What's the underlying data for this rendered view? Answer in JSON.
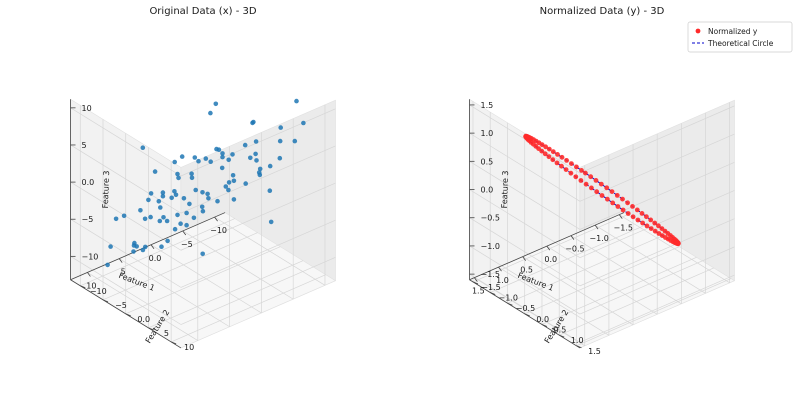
{
  "chart_data": [
    {
      "type": "scatter",
      "title": "Original Data (x) - 3D",
      "xlabel": "Feature 1",
      "ylabel": "Feature 2",
      "zlabel": "Feature 3",
      "xlim": [
        -13,
        14
      ],
      "ylim": [
        -13,
        13
      ],
      "zlim": [
        -15,
        13
      ],
      "xticks": [
        -10,
        -5,
        0,
        5,
        10
      ],
      "yticks": [
        -10,
        -5,
        0,
        5,
        10
      ],
      "zticks": [
        -10,
        -5,
        0,
        5,
        10
      ],
      "grid": true,
      "color": "#1f77b4",
      "points": [
        [
          -11,
          6,
          6
        ],
        [
          -9.5,
          3,
          3
        ],
        [
          -8,
          5,
          2
        ],
        [
          -7,
          2,
          -1
        ],
        [
          -9,
          -4,
          0
        ],
        [
          -6,
          8,
          8
        ],
        [
          -5,
          4,
          5
        ],
        [
          -4,
          -2,
          1
        ],
        [
          -3,
          6,
          9
        ],
        [
          -2,
          3,
          4
        ],
        [
          -2,
          -6,
          -2
        ],
        [
          -1,
          9,
          11
        ],
        [
          0,
          1,
          3
        ],
        [
          0.5,
          -3,
          -4
        ],
        [
          1,
          5,
          6
        ],
        [
          1.5,
          -8,
          -6
        ],
        [
          2,
          2,
          0
        ],
        [
          2.5,
          -5,
          -9
        ],
        [
          3,
          7,
          8
        ],
        [
          3.5,
          0,
          -1
        ],
        [
          4,
          -3,
          -5
        ],
        [
          4.5,
          4,
          2
        ],
        [
          5,
          -9,
          -11
        ],
        [
          5.5,
          6,
          7
        ],
        [
          6,
          -1,
          -3
        ],
        [
          6.5,
          3,
          4
        ],
        [
          7,
          -6,
          -8
        ],
        [
          7.5,
          8,
          9
        ],
        [
          8,
          1,
          -2
        ],
        [
          8.5,
          -4,
          -7
        ],
        [
          9,
          5,
          3
        ],
        [
          9.5,
          -2,
          -6
        ],
        [
          10,
          7,
          5
        ],
        [
          10.5,
          -7,
          -10
        ],
        [
          11,
          2,
          -4
        ],
        [
          -10,
          0,
          -5
        ],
        [
          -8.5,
          -7,
          -7
        ],
        [
          -7.5,
          9,
          6
        ],
        [
          -6.5,
          -3,
          -6
        ],
        [
          -5.5,
          1,
          -2
        ],
        [
          -4.5,
          -9,
          -10
        ],
        [
          -3.5,
          7,
          3
        ],
        [
          -2.5,
          -1,
          -4
        ],
        [
          -1.5,
          4,
          1
        ],
        [
          -0.5,
          -5,
          -8
        ],
        [
          0.2,
          10,
          7
        ],
        [
          0.8,
          -2,
          0
        ],
        [
          1.2,
          6,
          2
        ],
        [
          1.8,
          -7,
          -4
        ],
        [
          2.2,
          3,
          5
        ],
        [
          2.8,
          -10,
          -12
        ],
        [
          3.2,
          8,
          6
        ],
        [
          3.8,
          -1,
          2
        ],
        [
          4.2,
          5,
          0
        ],
        [
          4.8,
          -6,
          -3
        ],
        [
          5.2,
          2,
          6
        ],
        [
          5.8,
          -4,
          -1
        ],
        [
          6.2,
          9,
          4
        ],
        [
          6.8,
          0,
          1
        ],
        [
          7.2,
          -8,
          -5
        ],
        [
          7.8,
          4,
          7
        ],
        [
          8.2,
          -3,
          -2
        ],
        [
          8.8,
          6,
          1
        ],
        [
          -11.5,
          -2,
          -3
        ],
        [
          -9.2,
          7,
          10
        ],
        [
          -7.8,
          -5,
          -4
        ],
        [
          -6.2,
          3,
          0
        ],
        [
          -5.2,
          -8,
          -9
        ],
        [
          -4.2,
          5,
          4
        ],
        [
          -3.2,
          -4,
          -5
        ],
        [
          -2.2,
          8,
          5
        ],
        [
          -1.2,
          -6,
          -7
        ],
        [
          -0.2,
          2,
          5
        ],
        [
          0.6,
          -9,
          -12
        ],
        [
          1.4,
          7,
          3
        ],
        [
          2.6,
          -3,
          -2
        ],
        [
          3.6,
          10,
          8
        ],
        [
          4.6,
          -7,
          -6
        ],
        [
          5.6,
          1,
          -4
        ],
        [
          6.6,
          -2,
          3
        ],
        [
          7.6,
          5,
          -1
        ],
        [
          8.6,
          -9,
          -9
        ],
        [
          9.6,
          3,
          2
        ],
        [
          10.6,
          -5,
          -3
        ],
        [
          11.6,
          4,
          1
        ],
        [
          -8.8,
          2,
          -8
        ],
        [
          -2.8,
          -3,
          7
        ],
        [
          3.4,
          4,
          -7
        ],
        [
          6.4,
          -5,
          5
        ],
        [
          -5.8,
          -6,
          6
        ]
      ]
    },
    {
      "type": "line",
      "title": "Normalized Data (y) - 3D",
      "xlabel": "Feature 1",
      "ylabel": "Feature 2",
      "zlabel": "Feature 3",
      "xlim": [
        -1.8,
        1.8
      ],
      "ylim": [
        -1.8,
        1.8
      ],
      "zlim": [
        -1.8,
        1.8
      ],
      "xticks": [
        -1.5,
        -1.0,
        -0.5,
        0.0,
        0.5,
        1.0,
        1.5
      ],
      "yticks": [
        -1.5,
        -1.0,
        -0.5,
        0.0,
        0.5,
        1.0,
        1.5
      ],
      "zticks": [
        -1.5,
        -1.0,
        -0.5,
        0.0,
        0.5,
        1.0,
        1.5
      ],
      "grid": true,
      "legend": "top-right",
      "series": [
        {
          "name": "Normalized y",
          "kind": "scatter",
          "color": "#ff2a2a",
          "parametric": "x = 1.2*cos(t) - 0.9*sin(t), y = 1.2*cos(t) + 0.9*sin(t), z = 1.2*cos(t) - 0.9*sin(t)",
          "t_values": [
            0.0,
            0.07,
            0.14,
            0.21,
            0.28,
            0.35,
            0.42,
            0.49,
            0.56,
            0.63,
            0.7,
            0.77,
            0.84,
            0.91,
            0.98,
            1.05,
            1.12,
            1.19,
            1.26,
            1.33,
            1.4,
            1.47,
            1.54,
            1.61,
            1.68,
            1.75,
            1.82,
            1.89,
            1.96,
            2.03,
            2.1,
            2.17,
            2.24,
            2.31,
            2.38,
            2.45,
            2.52,
            2.59,
            2.66,
            2.73,
            2.8,
            2.87,
            2.94,
            3.01,
            3.08,
            3.15,
            3.22,
            3.29,
            3.36,
            3.43,
            3.5,
            3.57,
            3.64,
            3.71,
            3.78,
            3.85,
            3.92,
            3.99,
            4.06,
            4.13,
            4.2,
            4.27,
            4.34,
            4.41,
            4.48,
            4.55,
            4.62,
            4.69,
            4.76,
            4.83,
            4.9,
            4.97,
            5.04,
            5.11,
            5.18,
            5.25,
            5.32,
            5.39,
            5.46,
            5.53,
            5.6,
            5.67,
            5.74,
            5.81,
            5.88,
            5.95,
            6.02,
            6.09,
            6.16,
            6.23
          ]
        },
        {
          "name": "Theoretical Circle",
          "kind": "line",
          "style": "dashed",
          "color": "#0000cc",
          "parametric": "x = 1.2*cos(t) - 0.9*sin(t), y = 1.2*cos(t) + 0.9*sin(t), z = 1.2*cos(t) - 0.9*sin(t)"
        }
      ]
    }
  ]
}
